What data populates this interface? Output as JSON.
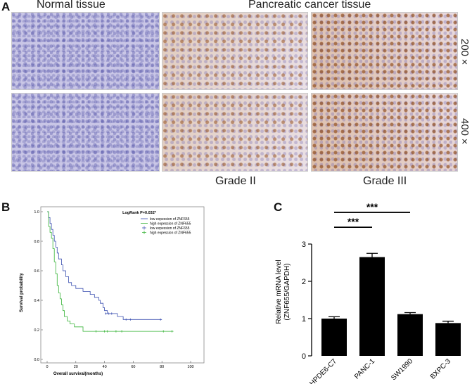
{
  "panel_a": {
    "letter": "A",
    "normal_title": "Normal tissue",
    "cancer_title": "Pancreatic cancer tissue",
    "mag_low": "200×",
    "mag_high": "400×",
    "grade_2": "Grade II",
    "grade_3": "Grade III"
  },
  "panel_b": {
    "letter": "B"
  },
  "panel_c": {
    "letter": "C"
  },
  "chart_data": [
    {
      "type": "line",
      "title": "LogRank P=0.032*",
      "xlabel": "Overall survival(months)",
      "ylabel": "Survival probability",
      "xlim": [
        0,
        100
      ],
      "ylim": [
        0,
        1.0
      ],
      "xticks": [
        "0",
        "20",
        "40",
        "60",
        "80",
        "100"
      ],
      "yticks": [
        "0.0",
        "0.2",
        "0.4",
        "0.6",
        "0.8",
        "1.0"
      ],
      "grid": false,
      "legend": "top-right",
      "legend_entries": [
        {
          "label": "low expession of ZNF655",
          "color": "#3a4fb0",
          "marker": "line"
        },
        {
          "label": "high expession of ZNF655",
          "color": "#36b336",
          "marker": "line"
        },
        {
          "label": "low expession of ZNF655",
          "color": "#3a4fb0",
          "marker": "plus"
        },
        {
          "label": "high expession of ZNF655",
          "color": "#36b336",
          "marker": "plus"
        }
      ],
      "series": [
        {
          "name": "low expession of ZNF655",
          "color": "#3a4fb0",
          "steps": [
            [
              0,
              1.0
            ],
            [
              1,
              0.96
            ],
            [
              2,
              0.92
            ],
            [
              3,
              0.88
            ],
            [
              4,
              0.84
            ],
            [
              5,
              0.8
            ],
            [
              6,
              0.76
            ],
            [
              7,
              0.72
            ],
            [
              8,
              0.68
            ],
            [
              10,
              0.64
            ],
            [
              11,
              0.6
            ],
            [
              13,
              0.56
            ],
            [
              15,
              0.52
            ],
            [
              17,
              0.5
            ],
            [
              20,
              0.48
            ],
            [
              25,
              0.46
            ],
            [
              30,
              0.44
            ],
            [
              33,
              0.42
            ],
            [
              36,
              0.4
            ],
            [
              37,
              0.38
            ],
            [
              39,
              0.35
            ],
            [
              40,
              0.33
            ],
            [
              42,
              0.31
            ],
            [
              49,
              0.29
            ],
            [
              53,
              0.27
            ],
            [
              80,
              0.27
            ]
          ],
          "censored": [
            [
              41,
              0.31
            ],
            [
              43,
              0.31
            ],
            [
              45,
              0.31
            ],
            [
              55,
              0.27
            ],
            [
              58,
              0.27
            ],
            [
              79,
              0.27
            ]
          ]
        },
        {
          "name": "high expession of ZNF655",
          "color": "#36b336",
          "steps": [
            [
              0,
              1.0
            ],
            [
              1,
              0.9
            ],
            [
              2,
              0.86
            ],
            [
              3,
              0.82
            ],
            [
              4,
              0.75
            ],
            [
              5,
              0.66
            ],
            [
              6,
              0.58
            ],
            [
              7,
              0.5
            ],
            [
              8,
              0.45
            ],
            [
              9,
              0.41
            ],
            [
              10,
              0.37
            ],
            [
              11,
              0.33
            ],
            [
              12,
              0.29
            ],
            [
              14,
              0.26
            ],
            [
              16,
              0.24
            ],
            [
              19,
              0.22
            ],
            [
              25,
              0.19
            ],
            [
              88,
              0.19
            ]
          ],
          "censored": [
            [
              34,
              0.19
            ],
            [
              40,
              0.19
            ],
            [
              42,
              0.19
            ],
            [
              48,
              0.19
            ],
            [
              52,
              0.19
            ],
            [
              81,
              0.19
            ],
            [
              87,
              0.19
            ]
          ]
        }
      ]
    },
    {
      "type": "bar",
      "ylabel": "Relative mRNA level\n(ZNF655/GAPDH)",
      "ylim": [
        0,
        3
      ],
      "yticks": [
        "0",
        "1",
        "2",
        "3"
      ],
      "categories": [
        "HPDE6-C7",
        "PANC-1",
        "SW1990",
        "BXPC-3"
      ],
      "values": [
        1.0,
        2.65,
        1.12,
        0.88
      ],
      "errors": [
        0.05,
        0.1,
        0.04,
        0.05
      ],
      "bar_color": "#000000",
      "significance": [
        {
          "from": "HPDE6-C7",
          "to": "PANC-1",
          "label": "***",
          "level": 3.45
        },
        {
          "from": "HPDE6-C7",
          "to": "SW1990",
          "label": "***",
          "level": 3.85
        }
      ]
    }
  ]
}
